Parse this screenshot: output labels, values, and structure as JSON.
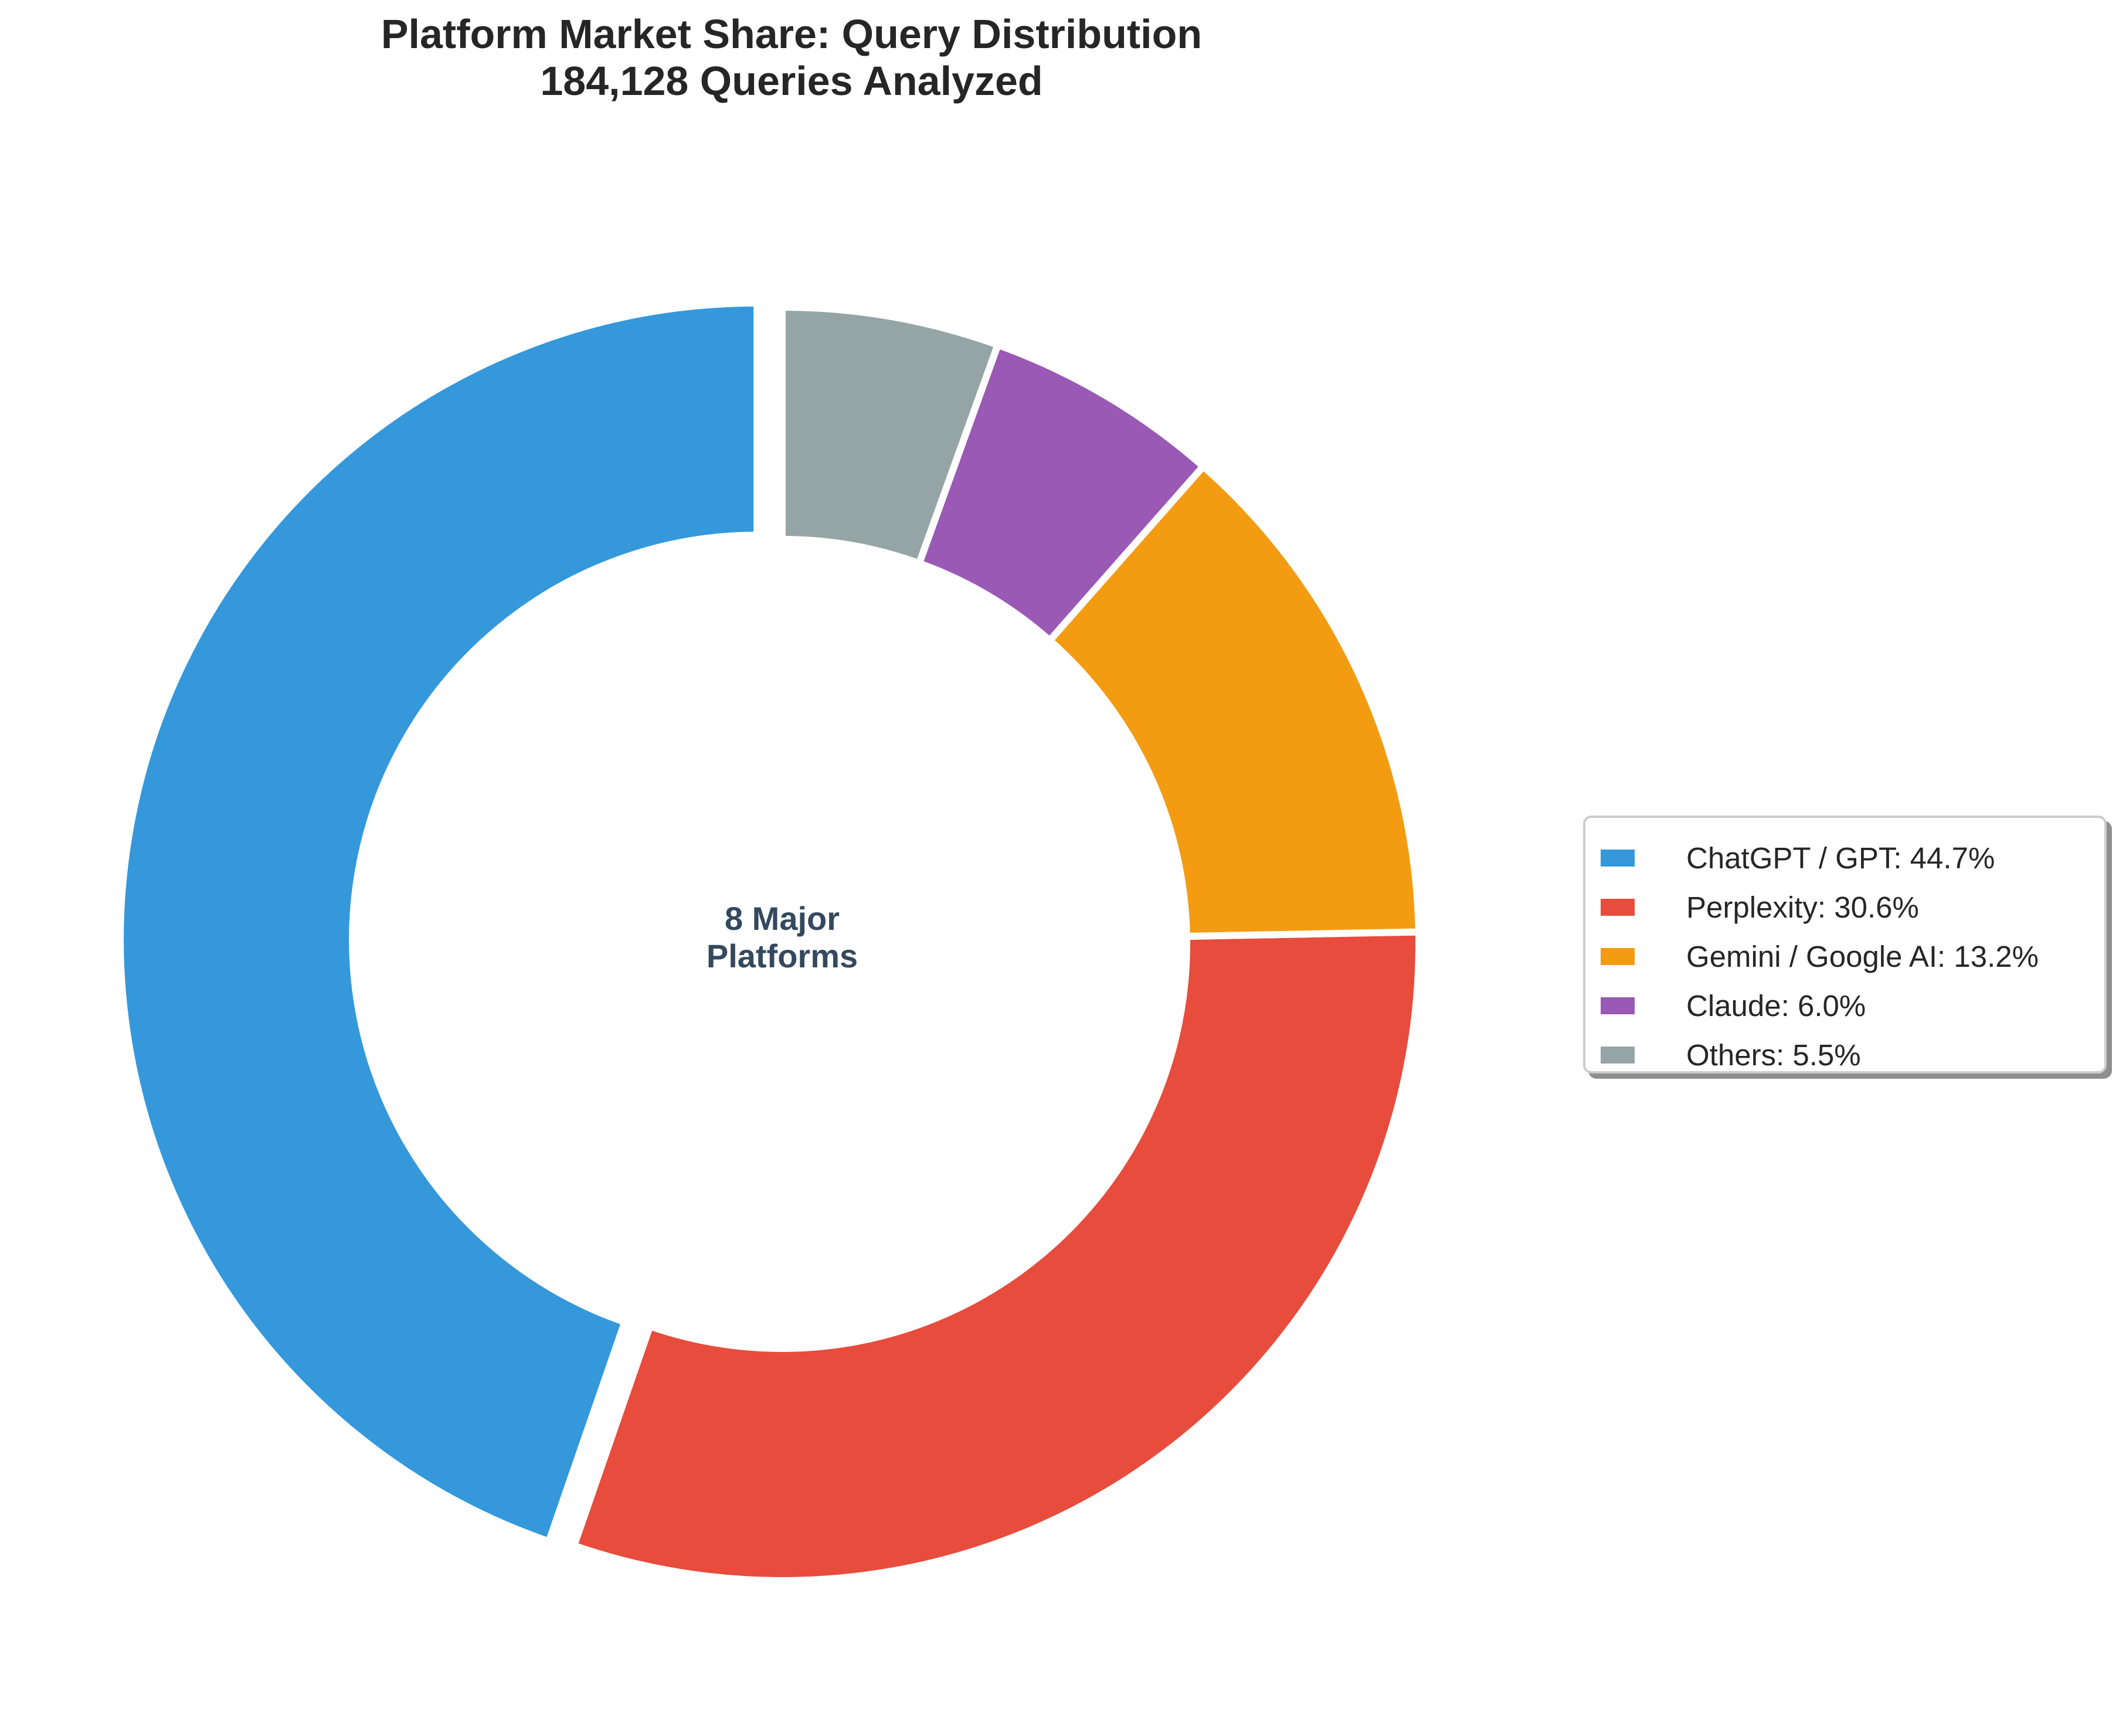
{
  "title": {
    "line1": "Platform Market Share: Query Distribution",
    "line2": "184,128 Queries Analyzed"
  },
  "center_label": {
    "line1": "8 Major",
    "line2": "Platforms"
  },
  "legend": {
    "items": [
      {
        "label": "ChatGPT / GPT: 44.7%",
        "color": "#3498db"
      },
      {
        "label": "Perplexity: 30.6%",
        "color": "#e74c3c"
      },
      {
        "label": "Gemini / Google AI: 13.2%",
        "color": "#f39c12"
      },
      {
        "label": "Claude: 6.0%",
        "color": "#9b59b6"
      },
      {
        "label": "Others: 5.5%",
        "color": "#95a5a6"
      }
    ]
  },
  "chart_data": {
    "type": "pie",
    "variant": "donut",
    "title": "Platform Market Share: Query Distribution\n184,128 Queries Analyzed",
    "center_text": "8 Major Platforms",
    "categories": [
      "ChatGPT / GPT",
      "Perplexity",
      "Gemini / Google AI",
      "Claude",
      "Others"
    ],
    "values": [
      44.7,
      30.6,
      13.2,
      6.0,
      5.5
    ],
    "colors": [
      "#3498db",
      "#e74c3c",
      "#f39c12",
      "#9b59b6",
      "#95a5a6"
    ],
    "explode": [
      0.04,
      0,
      0,
      0,
      0
    ],
    "start_angle": 90,
    "direction": "counterclockwise",
    "legend_position": "right",
    "total_queries": 184128
  }
}
